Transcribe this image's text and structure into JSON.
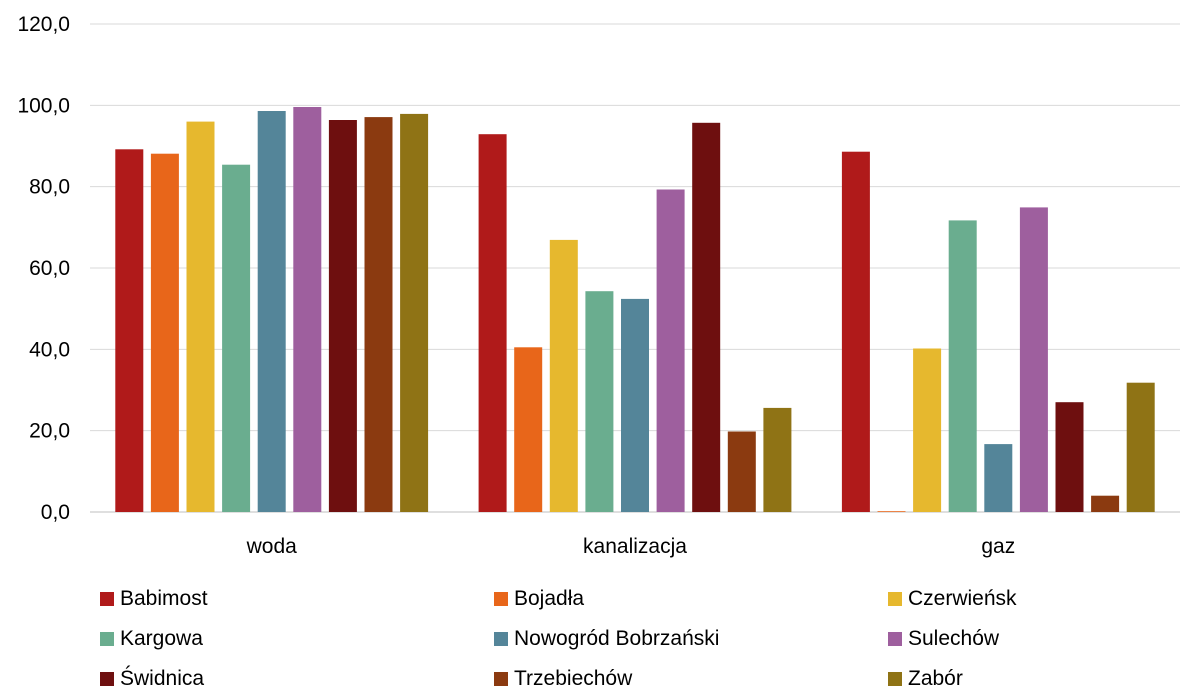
{
  "chart_data": {
    "type": "bar",
    "title": "",
    "xlabel": "",
    "ylabel": "",
    "ylim": [
      0,
      120
    ],
    "y_ticks": [
      "0,0",
      "20,0",
      "40,0",
      "60,0",
      "80,0",
      "100,0",
      "120,0"
    ],
    "y_tick_values": [
      0,
      20,
      40,
      60,
      80,
      100,
      120
    ],
    "categories": [
      "woda",
      "kanalizacja",
      "gaz"
    ],
    "grid": "horizontal",
    "legend_position": "bottom",
    "series": [
      {
        "name": "Babimost",
        "color": "#b01a1a",
        "values": [
          89.2,
          92.9,
          88.6
        ]
      },
      {
        "name": "Bojadła",
        "color": "#e8661a",
        "values": [
          88.1,
          40.5,
          0.2
        ]
      },
      {
        "name": "Czerwieńsk",
        "color": "#e6b82e",
        "values": [
          96.0,
          66.9,
          40.2
        ]
      },
      {
        "name": "Kargowa",
        "color": "#6aad8f",
        "values": [
          85.4,
          54.3,
          71.7
        ]
      },
      {
        "name": "Nowogród Bobrzański",
        "color": "#548599",
        "values": [
          98.6,
          52.4,
          16.7
        ]
      },
      {
        "name": "Sulechów",
        "color": "#9e5f9e",
        "values": [
          99.6,
          79.3,
          74.9
        ]
      },
      {
        "name": "Świdnica",
        "color": "#6e0f0f",
        "values": [
          96.4,
          95.7,
          27.0
        ]
      },
      {
        "name": "Trzebiechów",
        "color": "#8b3a10",
        "values": [
          97.1,
          19.8,
          4.0
        ]
      },
      {
        "name": "Zabór",
        "color": "#8f7315",
        "values": [
          97.9,
          25.6,
          31.8
        ]
      }
    ]
  }
}
